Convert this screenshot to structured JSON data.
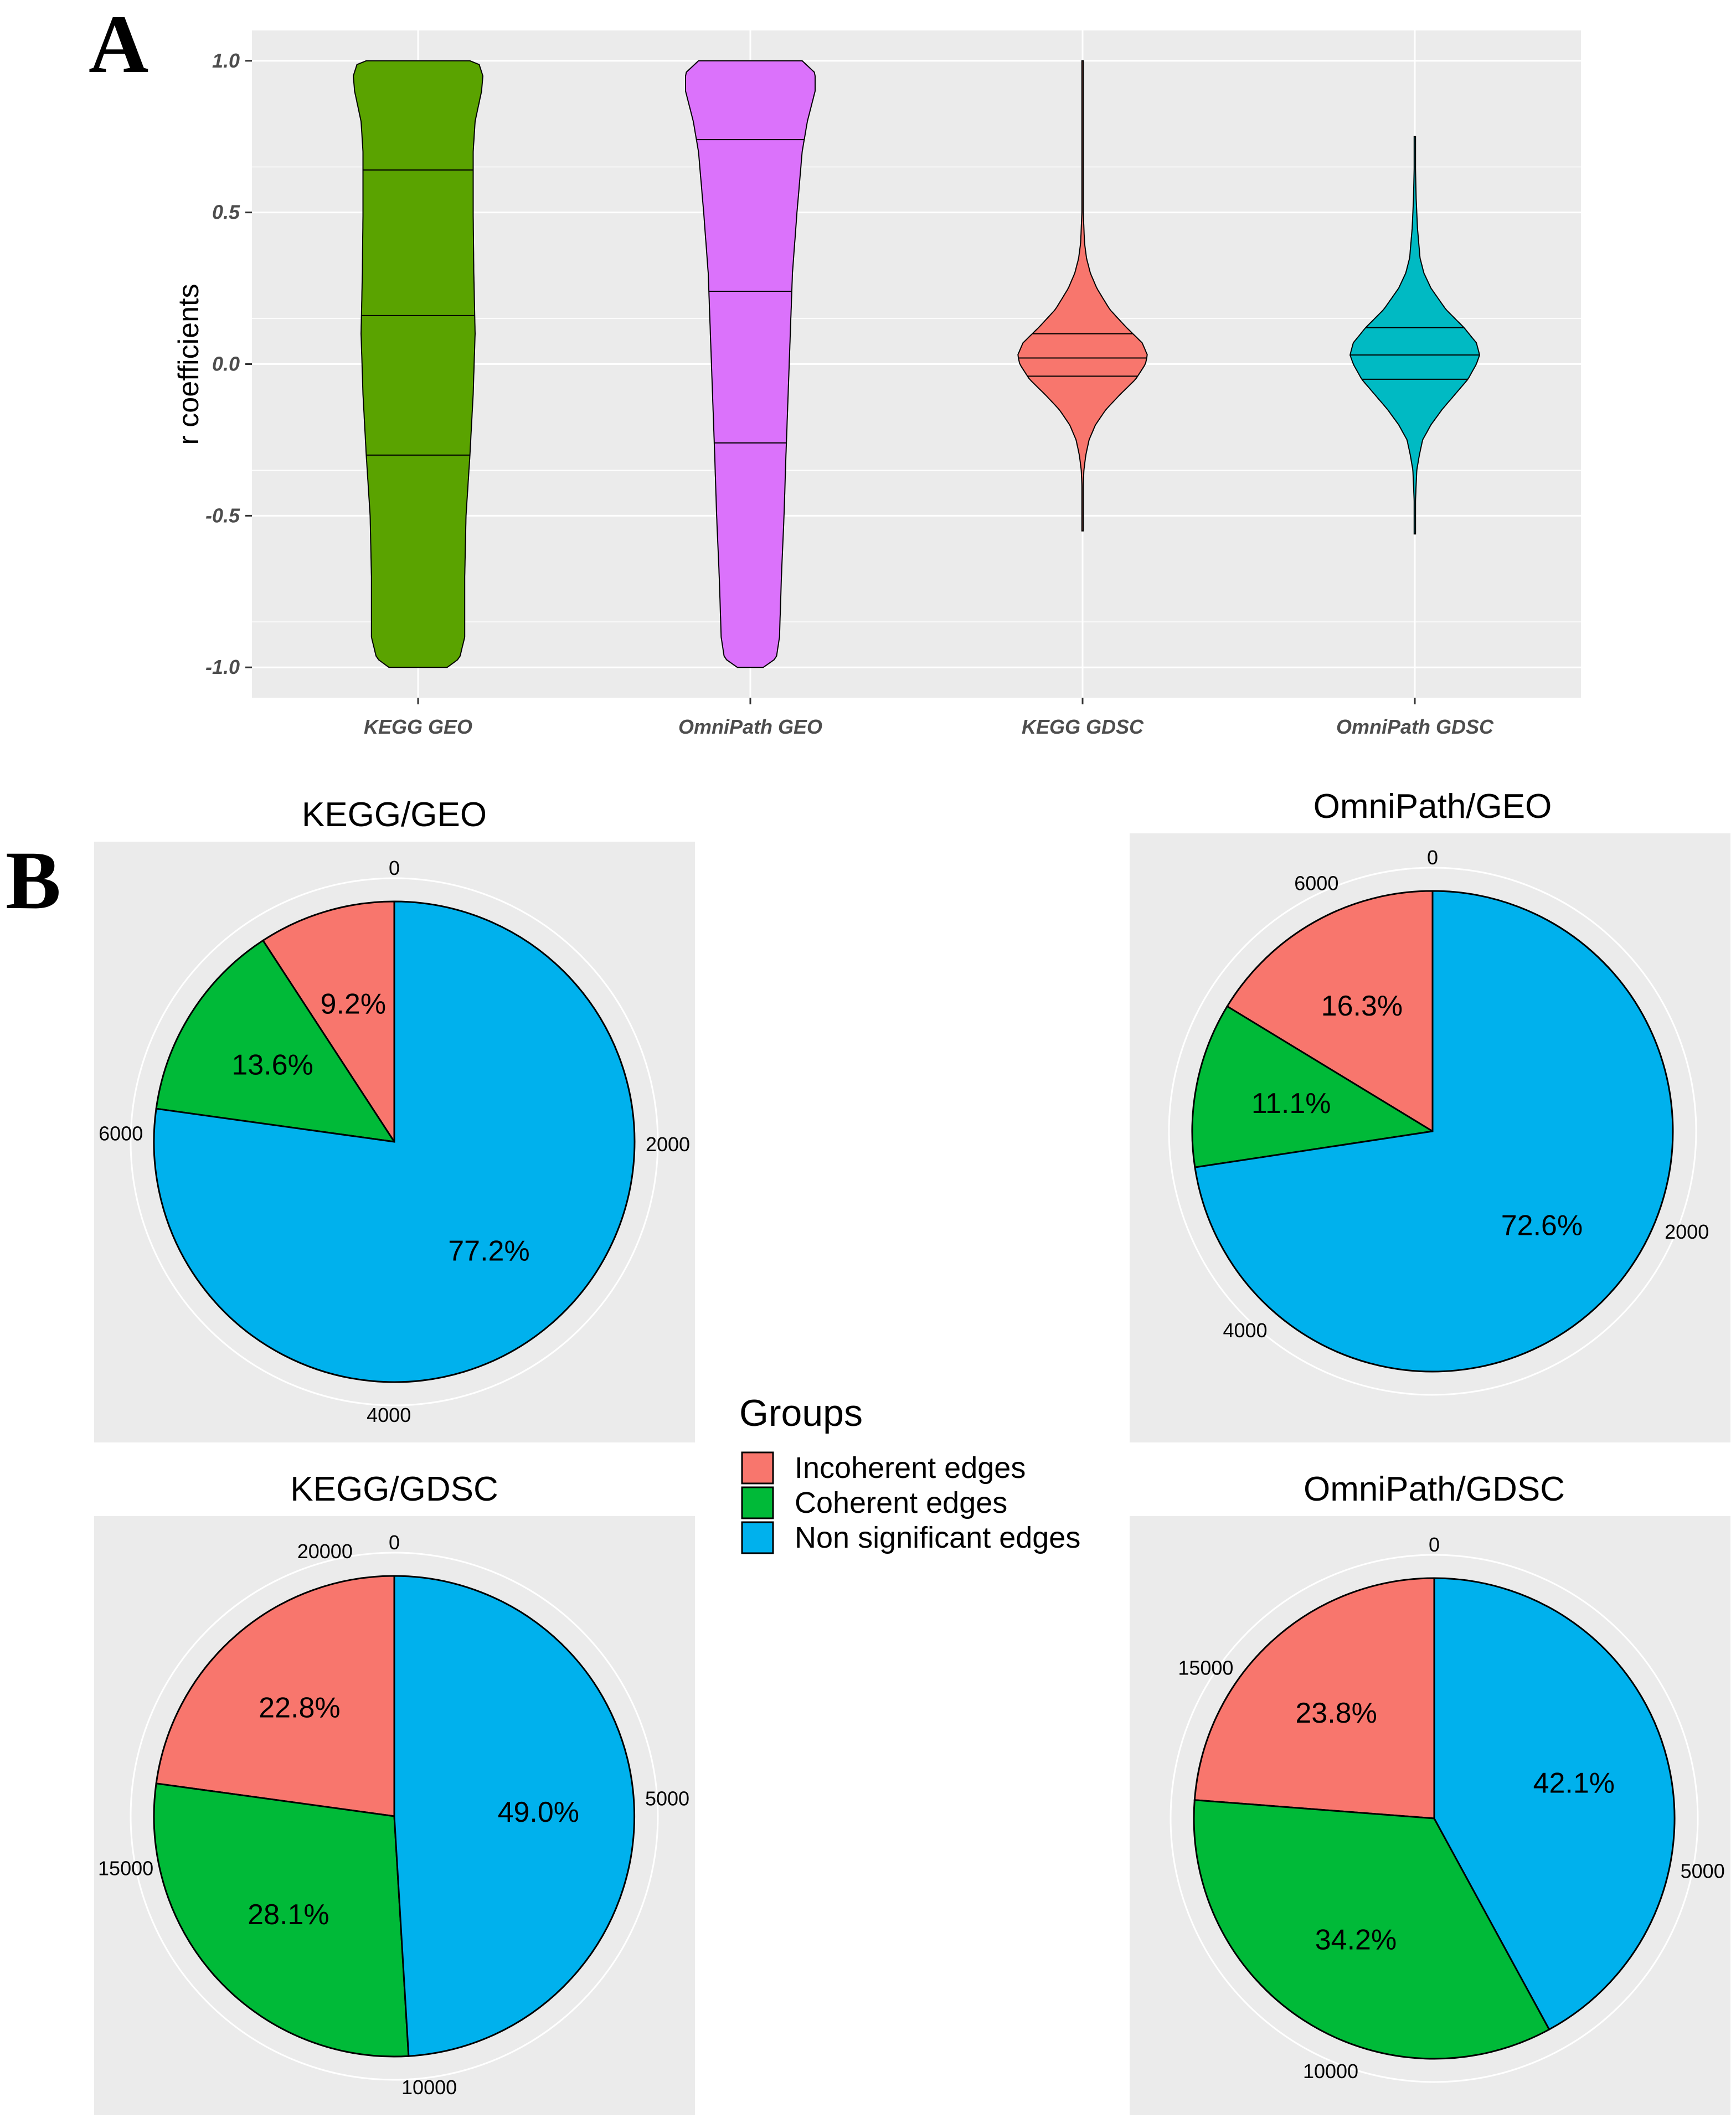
{
  "figure": {
    "panel_a_label": "A",
    "panel_b_label": "B"
  },
  "colors": {
    "panel_bg": "#ebebeb",
    "grid": "#ffffff",
    "kegg_geo": "#5aa300",
    "omnipath_geo": "#db72fb",
    "kegg_gdsc": "#f8766d",
    "omnipath_gdsc": "#00bac3",
    "incoherent": "#f8766d",
    "coherent": "#00ba38",
    "non_significant": "#00b1ed"
  },
  "chart_data": [
    {
      "type": "violin",
      "panel": "A",
      "title": "",
      "xlabel": "",
      "ylabel": "r coefficients",
      "ylim": [
        -1.1,
        1.1
      ],
      "yticks": [
        1.0,
        0.5,
        0.0,
        -0.5,
        -1.0
      ],
      "ytick_labels": [
        "1.0",
        "0.5",
        "0.0",
        "-0.5",
        "-1.0"
      ],
      "categories": [
        "KEGG GEO",
        "OmniPath GEO",
        "KEGG GDSC",
        "OmniPath GDSC"
      ],
      "series": [
        {
          "name": "KEGG GEO",
          "color_key": "kegg_geo",
          "range": [
            -1.0,
            1.0
          ],
          "quantiles": [
            -0.3,
            0.16,
            0.64
          ],
          "density_profile": [
            [
              -1.0,
              0.45
            ],
            [
              -0.97,
              0.64
            ],
            [
              -0.9,
              0.72
            ],
            [
              -0.7,
              0.72
            ],
            [
              -0.5,
              0.74
            ],
            [
              -0.3,
              0.8
            ],
            [
              -0.1,
              0.85
            ],
            [
              0.1,
              0.88
            ],
            [
              0.3,
              0.86
            ],
            [
              0.5,
              0.85
            ],
            [
              0.7,
              0.85
            ],
            [
              0.8,
              0.88
            ],
            [
              0.9,
              0.98
            ],
            [
              0.95,
              1.0
            ],
            [
              0.99,
              0.94
            ],
            [
              1.0,
              0.8
            ]
          ]
        },
        {
          "name": "OmniPath GEO",
          "color_key": "omnipath_geo",
          "range": [
            -1.0,
            1.0
          ],
          "quantiles": [
            -0.26,
            0.24,
            0.74
          ],
          "density_profile": [
            [
              -1.0,
              0.2
            ],
            [
              -0.97,
              0.4
            ],
            [
              -0.9,
              0.45
            ],
            [
              -0.7,
              0.48
            ],
            [
              -0.5,
              0.52
            ],
            [
              -0.3,
              0.55
            ],
            [
              0.0,
              0.6
            ],
            [
              0.3,
              0.65
            ],
            [
              0.5,
              0.72
            ],
            [
              0.7,
              0.8
            ],
            [
              0.8,
              0.88
            ],
            [
              0.9,
              1.0
            ],
            [
              0.96,
              1.0
            ],
            [
              1.0,
              0.8
            ]
          ]
        },
        {
          "name": "KEGG GDSC",
          "color_key": "kegg_gdsc",
          "range": [
            -0.55,
            1.0
          ],
          "quantiles": [
            -0.04,
            0.02,
            0.1
          ],
          "density_profile": [
            [
              -0.55,
              0.005
            ],
            [
              -0.4,
              0.01
            ],
            [
              -0.35,
              0.02
            ],
            [
              -0.3,
              0.05
            ],
            [
              -0.25,
              0.1
            ],
            [
              -0.2,
              0.2
            ],
            [
              -0.15,
              0.36
            ],
            [
              -0.1,
              0.58
            ],
            [
              -0.05,
              0.82
            ],
            [
              0.0,
              0.97
            ],
            [
              0.03,
              1.0
            ],
            [
              0.07,
              0.92
            ],
            [
              0.12,
              0.68
            ],
            [
              0.18,
              0.42
            ],
            [
              0.25,
              0.22
            ],
            [
              0.3,
              0.12
            ],
            [
              0.35,
              0.06
            ],
            [
              0.4,
              0.03
            ],
            [
              0.5,
              0.01
            ],
            [
              0.6,
              0.008
            ],
            [
              0.8,
              0.005
            ],
            [
              1.0,
              0.003
            ]
          ]
        },
        {
          "name": "OmniPath GDSC",
          "color_key": "omnipath_gdsc",
          "range": [
            -0.56,
            0.75
          ],
          "quantiles": [
            -0.05,
            0.03,
            0.12
          ],
          "density_profile": [
            [
              -0.56,
              0.005
            ],
            [
              -0.45,
              0.01
            ],
            [
              -0.35,
              0.03
            ],
            [
              -0.3,
              0.07
            ],
            [
              -0.25,
              0.12
            ],
            [
              -0.2,
              0.25
            ],
            [
              -0.15,
              0.42
            ],
            [
              -0.1,
              0.62
            ],
            [
              -0.05,
              0.82
            ],
            [
              0.0,
              0.95
            ],
            [
              0.03,
              1.0
            ],
            [
              0.07,
              0.95
            ],
            [
              0.12,
              0.76
            ],
            [
              0.18,
              0.48
            ],
            [
              0.25,
              0.25
            ],
            [
              0.3,
              0.14
            ],
            [
              0.35,
              0.08
            ],
            [
              0.45,
              0.04
            ],
            [
              0.55,
              0.02
            ],
            [
              0.65,
              0.01
            ],
            [
              0.75,
              0.004
            ]
          ]
        }
      ]
    },
    {
      "type": "pie",
      "panel": "B",
      "title": "KEGG/GEO",
      "total": 7950,
      "ticks": [
        "0",
        "2000",
        "4000",
        "6000"
      ],
      "tick_values": [
        0,
        2000,
        4000,
        6000
      ],
      "slices": [
        {
          "name": "Incoherent edges",
          "value": 9.2,
          "label": "9.2%",
          "color_key": "incoherent"
        },
        {
          "name": "Coherent edges",
          "value": 13.6,
          "label": "13.6%",
          "color_key": "coherent"
        },
        {
          "name": "Non significant edges",
          "value": 77.2,
          "label": "77.2%",
          "color_key": "non_significant"
        }
      ]
    },
    {
      "type": "pie",
      "panel": "B",
      "title": "OmniPath/GEO",
      "total": 6450,
      "ticks": [
        "0",
        "2000",
        "4000",
        "6000"
      ],
      "tick_values": [
        0,
        2000,
        4000,
        6000
      ],
      "slices": [
        {
          "name": "Incoherent edges",
          "value": 16.3,
          "label": "16.3%",
          "color_key": "incoherent"
        },
        {
          "name": "Coherent edges",
          "value": 11.1,
          "label": "11.1%",
          "color_key": "coherent"
        },
        {
          "name": "Non significant edges",
          "value": 72.6,
          "label": "72.6%",
          "color_key": "non_significant"
        }
      ]
    },
    {
      "type": "pie",
      "panel": "B",
      "title": "KEGG/GDSC",
      "total": 20850,
      "ticks": [
        "0",
        "5000",
        "10000",
        "15000",
        "20000"
      ],
      "tick_values": [
        0,
        5000,
        10000,
        15000,
        20000
      ],
      "slices": [
        {
          "name": "Incoherent edges",
          "value": 22.8,
          "label": "22.8%",
          "color_key": "incoherent"
        },
        {
          "name": "Coherent edges",
          "value": 28.1,
          "label": "28.1%",
          "color_key": "coherent"
        },
        {
          "name": "Non significant edges",
          "value": 49.0,
          "label": "49.0%",
          "color_key": "non_significant"
        }
      ]
    },
    {
      "type": "pie",
      "panel": "B",
      "title": "OmniPath/GDSC",
      "total": 17800,
      "ticks": [
        "0",
        "5000",
        "10000",
        "15000"
      ],
      "tick_values": [
        0,
        5000,
        10000,
        15000
      ],
      "slices": [
        {
          "name": "Incoherent edges",
          "value": 23.8,
          "label": "23.8%",
          "color_key": "incoherent"
        },
        {
          "name": "Coherent edges",
          "value": 34.2,
          "label": "34.2%",
          "color_key": "coherent"
        },
        {
          "name": "Non significant edges",
          "value": 42.1,
          "label": "42.1%",
          "color_key": "non_significant"
        }
      ]
    }
  ],
  "legend": {
    "title": "Groups",
    "items": [
      {
        "label": "Incoherent edges",
        "color_key": "incoherent"
      },
      {
        "label": "Coherent edges",
        "color_key": "coherent"
      },
      {
        "label": "Non significant edges",
        "color_key": "non_significant"
      }
    ]
  }
}
